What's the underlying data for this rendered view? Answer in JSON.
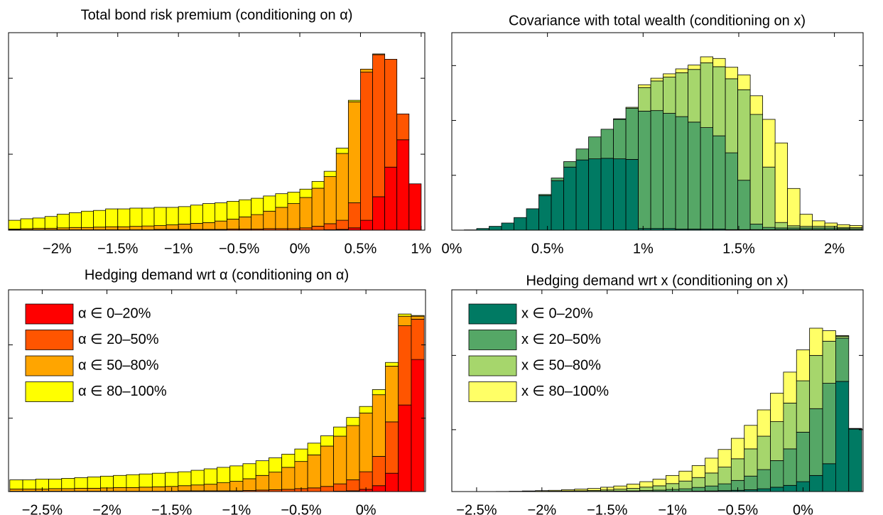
{
  "chart_data": [
    {
      "type": "histogram",
      "stacked": true,
      "title": "Total bond risk premium (conditioning on α)",
      "bins": [
        -2.4,
        -2.3,
        -2.2,
        -2.1,
        -2,
        -1.9,
        -1.8,
        -1.7,
        -1.6,
        -1.5,
        -1.4,
        -1.3,
        -1.2,
        -1.1,
        -1,
        -0.9,
        -0.8,
        -0.7,
        -0.6,
        -0.5,
        -0.4,
        -0.3,
        -0.2,
        -0.1,
        0,
        0.1,
        0.2,
        0.3,
        0.4,
        0.5,
        0.6,
        0.7,
        0.8,
        0.9,
        1
      ],
      "series": [
        {
          "color": "#ff0000",
          "values": [
            0,
            0,
            0,
            0,
            0,
            0,
            0,
            0,
            0,
            0,
            0,
            0,
            0,
            0,
            0,
            0,
            0,
            0,
            0,
            0,
            0,
            0,
            0,
            0,
            0,
            0.02,
            0.05,
            0.1,
            0.3,
            1.3,
            4.4,
            8.3,
            11.9,
            6.1
          ]
        },
        {
          "color": "#ff5500",
          "values": [
            0.05,
            0.05,
            0.05,
            0.05,
            0.05,
            0.05,
            0.05,
            0.05,
            0.05,
            0.05,
            0.05,
            0.05,
            0.1,
            0.1,
            0.1,
            0.1,
            0.1,
            0.1,
            0.15,
            0.15,
            0.15,
            0.2,
            0.2,
            0.2,
            0.3,
            0.5,
            0.8,
            1.2,
            3.3,
            19.5,
            18.7,
            14.2,
            3.4,
            0
          ]
        },
        {
          "color": "#ffa500",
          "values": [
            0.1,
            0.15,
            0.2,
            0.2,
            0.25,
            0.3,
            0.3,
            0.35,
            0.4,
            0.4,
            0.45,
            0.5,
            0.5,
            0.6,
            0.7,
            0.8,
            0.9,
            1.1,
            1.3,
            1.6,
            1.9,
            2.3,
            2.8,
            3.3,
            4.0,
            5.0,
            6.2,
            8.8,
            13.3,
            0.4,
            0.1,
            0,
            0,
            0
          ]
        },
        {
          "color": "#ffff00",
          "values": [
            1.15,
            1.3,
            1.35,
            1.55,
            1.8,
            1.95,
            2.15,
            2.2,
            2.35,
            2.35,
            2.4,
            2.35,
            2.4,
            2.3,
            2.3,
            2.4,
            2.5,
            2.4,
            2.35,
            2.25,
            2.15,
            2.0,
            1.8,
            1.5,
            1.1,
            0.9,
            0.7,
            0.7,
            0.2,
            0,
            0,
            0,
            0,
            0
          ]
        }
      ],
      "xlim": [
        -2.4,
        1.03
      ],
      "ylim": [
        0,
        26
      ],
      "yticks": [
        0,
        10,
        20
      ],
      "xticks": [
        {
          "value": -2,
          "label": "−2%"
        },
        {
          "value": -1.5,
          "label": "−1.5%"
        },
        {
          "value": -1,
          "label": "−1%"
        },
        {
          "value": -0.5,
          "label": "−0.5%"
        },
        {
          "value": 0,
          "label": "0%"
        },
        {
          "value": 0.5,
          "label": "0.5%"
        },
        {
          "value": 1,
          "label": "1%"
        }
      ]
    },
    {
      "type": "histogram",
      "stacked": true,
      "title": "Covariance with total wealth (conditioning on x)",
      "bins": [
        0,
        0.065,
        0.13,
        0.195,
        0.26,
        0.325,
        0.39,
        0.455,
        0.52,
        0.585,
        0.65,
        0.715,
        0.78,
        0.845,
        0.91,
        0.975,
        1.04,
        1.105,
        1.17,
        1.235,
        1.3,
        1.365,
        1.43,
        1.495,
        1.56,
        1.625,
        1.69,
        1.755,
        1.82,
        1.885,
        1.95,
        2.015,
        2.08,
        2.145
      ],
      "series": [
        {
          "color": "#007a63",
          "values": [
            0,
            0.05,
            0.3,
            0.7,
            1.3,
            2.3,
            3.9,
            6.3,
            9.0,
            11.5,
            12.8,
            13.0,
            13.1,
            13.0,
            12.9,
            0.3,
            0.3,
            0.3,
            0.2,
            0.2,
            0.2,
            0.2,
            0.1,
            0.1,
            0.1,
            0.1,
            0.1,
            0.1,
            0.1,
            0.1,
            0.1,
            0.1,
            0.05
          ]
        },
        {
          "color": "#55a766",
          "values": [
            0,
            0,
            0,
            0,
            0,
            0,
            0,
            0.2,
            0.5,
            1.0,
            2.0,
            4.0,
            5.3,
            7.2,
            9.3,
            21.4,
            21.5,
            21.0,
            20.5,
            19.5,
            18.5,
            17.0,
            14.0,
            9.0,
            1.0,
            0.4,
            0.3,
            0.3,
            0.3,
            0.3,
            0.3,
            0.2,
            0.2
          ]
        },
        {
          "color": "#a6d66c",
          "values": [
            0,
            0,
            0,
            0,
            0,
            0,
            0,
            0,
            0,
            0,
            0,
            0,
            0,
            0.1,
            0.2,
            4.3,
            5.4,
            6.6,
            8.0,
            9.6,
            11.8,
            12.6,
            13.5,
            16.5,
            20.0,
            11.0,
            1.0,
            0.4,
            0.3,
            0.3,
            0.3,
            0.2,
            0.2
          ]
        },
        {
          "color": "#ffff66",
          "values": [
            0,
            0,
            0,
            0,
            0,
            0,
            0,
            0,
            0,
            0,
            0,
            0,
            0,
            0,
            0,
            0.5,
            0.5,
            0.6,
            0.7,
            0.8,
            1.1,
            1.5,
            2.1,
            2.7,
            3.4,
            8.7,
            14.5,
            6.8,
            2.2,
            1.0,
            0.6,
            0.5,
            0.4
          ]
        }
      ],
      "xlim": [
        0,
        2.15
      ],
      "ylim": [
        0,
        36
      ],
      "yticks": [
        0,
        10,
        20,
        30
      ],
      "xticks": [
        {
          "value": 0,
          "label": "0%"
        },
        {
          "value": 0.5,
          "label": "0.5%"
        },
        {
          "value": 1,
          "label": "1%"
        },
        {
          "value": 1.5,
          "label": "1.5%"
        },
        {
          "value": 2,
          "label": "2%"
        }
      ]
    },
    {
      "type": "histogram",
      "stacked": true,
      "title": "Hedging demand wrt α (conditioning on α)",
      "legend": "upper left",
      "bins": [
        -2.75,
        -2.65,
        -2.55,
        -2.45,
        -2.35,
        -2.25,
        -2.15,
        -2.05,
        -1.95,
        -1.85,
        -1.75,
        -1.65,
        -1.55,
        -1.45,
        -1.35,
        -1.25,
        -1.15,
        -1.05,
        -0.95,
        -0.85,
        -0.75,
        -0.65,
        -0.55,
        -0.45,
        -0.35,
        -0.25,
        -0.15,
        -0.05,
        0.05,
        0.15,
        0.25,
        0.35,
        0.45
      ],
      "series": [
        {
          "name": "α ∈ 0–20%",
          "color": "#ff0000",
          "values": [
            0,
            0,
            0,
            0,
            0,
            0,
            0,
            0,
            0,
            0,
            0,
            0,
            0,
            0,
            0,
            0,
            0,
            0,
            0,
            0,
            0,
            0,
            0,
            0,
            0,
            0.05,
            0.1,
            0.3,
            0.8,
            2.5,
            11.8,
            18.0
          ]
        },
        {
          "name": "α ∈ 20–50%",
          "color": "#ff5500",
          "values": [
            0.05,
            0.05,
            0.05,
            0.05,
            0.05,
            0.05,
            0.05,
            0.05,
            0.05,
            0.05,
            0.05,
            0.05,
            0.05,
            0.1,
            0.1,
            0.1,
            0.1,
            0.1,
            0.15,
            0.2,
            0.25,
            0.3,
            0.4,
            0.5,
            0.7,
            1.0,
            1.5,
            2.4,
            4.0,
            7.0,
            10.8,
            5.5
          ]
        },
        {
          "name": "α ∈ 50–80%",
          "color": "#ffa500",
          "values": [
            0.3,
            0.3,
            0.3,
            0.35,
            0.35,
            0.4,
            0.4,
            0.45,
            0.5,
            0.5,
            0.55,
            0.6,
            0.65,
            0.7,
            0.8,
            0.9,
            1.1,
            1.3,
            1.6,
            2.0,
            2.4,
            3.0,
            3.7,
            4.5,
            5.5,
            6.5,
            7.4,
            8.0,
            8.4,
            7.6,
            1.3,
            0.4
          ]
        },
        {
          "name": "α ∈ 80–100%",
          "color": "#ffff00",
          "values": [
            1.25,
            1.25,
            1.35,
            1.3,
            1.4,
            1.45,
            1.55,
            1.6,
            1.65,
            1.75,
            1.8,
            1.85,
            1.9,
            1.9,
            2.0,
            2.1,
            2.1,
            2.1,
            2.05,
            2.0,
            1.95,
            1.8,
            1.7,
            1.6,
            1.4,
            1.25,
            1.1,
            0.9,
            0.7,
            0.5,
            0.3,
            0.1
          ]
        }
      ],
      "xlim": [
        -2.76,
        0.46
      ],
      "ylim": [
        0,
        27.5
      ],
      "yticks": [
        0,
        10,
        20
      ],
      "xticks": [
        {
          "value": -2.5,
          "label": "−2.5%"
        },
        {
          "value": -2,
          "label": "−2%"
        },
        {
          "value": -1.5,
          "label": "−1.5%"
        },
        {
          "value": -1,
          "label": "−1%"
        },
        {
          "value": -0.5,
          "label": "−0.5%"
        },
        {
          "value": 0,
          "label": "0%"
        }
      ]
    },
    {
      "type": "histogram",
      "stacked": true,
      "title": "Hedging demand wrt x (conditioning on x)",
      "legend": "upper left",
      "bins": [
        -2.65,
        -2.55,
        -2.45,
        -2.35,
        -2.25,
        -2.15,
        -2.05,
        -1.95,
        -1.85,
        -1.75,
        -1.65,
        -1.55,
        -1.45,
        -1.35,
        -1.25,
        -1.15,
        -1.05,
        -0.95,
        -0.85,
        -0.75,
        -0.65,
        -0.55,
        -0.45,
        -0.35,
        -0.25,
        -0.15,
        -0.05,
        0.05,
        0.15,
        0.25,
        0.35,
        0.45
      ],
      "series": [
        {
          "name": "x ∈ 0–20%",
          "color": "#007a63",
          "values": [
            0,
            0,
            0,
            0,
            0,
            0,
            0,
            0,
            0,
            0,
            0,
            0,
            0.01,
            0.01,
            0.02,
            0.03,
            0.04,
            0.05,
            0.07,
            0.1,
            0.15,
            0.2,
            0.3,
            0.45,
            0.7,
            1.0,
            1.6,
            2.6,
            4.5,
            17.8,
            10.1
          ]
        },
        {
          "name": "x ∈ 20–50%",
          "color": "#55a766",
          "values": [
            0,
            0,
            0,
            0,
            0,
            0,
            0.01,
            0.01,
            0.02,
            0.03,
            0.04,
            0.06,
            0.08,
            0.1,
            0.15,
            0.2,
            0.3,
            0.4,
            0.6,
            0.8,
            1.1,
            1.6,
            2.2,
            3.1,
            4.3,
            5.9,
            8.0,
            10.8,
            13.0,
            7.0,
            0.05
          ]
        },
        {
          "name": "x ∈ 50–80%",
          "color": "#a6d66c",
          "values": [
            0,
            0,
            0,
            0,
            0.01,
            0.02,
            0.03,
            0.05,
            0.08,
            0.1,
            0.13,
            0.2,
            0.3,
            0.4,
            0.55,
            0.7,
            0.95,
            1.25,
            1.6,
            2.1,
            2.7,
            3.5,
            4.4,
            5.4,
            6.3,
            7.4,
            8.3,
            8.6,
            6.8,
            0.3,
            0.03
          ]
        },
        {
          "name": "x ∈ 80–100%",
          "color": "#ffff66",
          "values": [
            0,
            0,
            0,
            0.02,
            0.04,
            0.08,
            0.11,
            0.14,
            0.2,
            0.27,
            0.33,
            0.44,
            0.51,
            0.69,
            0.88,
            1.07,
            1.31,
            1.6,
            1.93,
            2.4,
            2.85,
            3.3,
            3.8,
            4.25,
            4.6,
            5.0,
            5.0,
            4.4,
            1.7,
            0.1,
            0.02
          ]
        }
      ],
      "xlim": [
        -2.69,
        0.46
      ],
      "ylim": [
        0,
        32.6
      ],
      "yticks": [
        0,
        10,
        22
      ],
      "xticks": [
        {
          "value": -2.5,
          "label": "−2.5%"
        },
        {
          "value": -2,
          "label": "−2%"
        },
        {
          "value": -1.5,
          "label": "−1.5%"
        },
        {
          "value": -1,
          "label": "−1%"
        },
        {
          "value": -0.5,
          "label": "−0.5%"
        },
        {
          "value": 0,
          "label": "0%"
        }
      ]
    }
  ]
}
